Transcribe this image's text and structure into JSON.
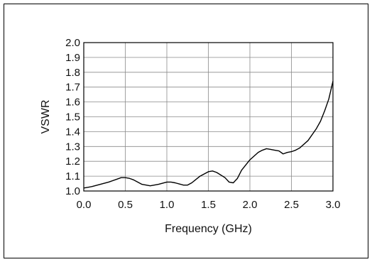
{
  "chart_data": {
    "type": "line",
    "title": "",
    "xlabel": "Frequency (GHz)",
    "ylabel": "VSWR",
    "xlim": [
      0.0,
      3.0
    ],
    "ylim": [
      1.0,
      2.0
    ],
    "grid": true,
    "x_ticks": [
      "0.0",
      "0.5",
      "1.0",
      "1.5",
      "2.0",
      "2.5",
      "3.0"
    ],
    "y_ticks": [
      "1.0",
      "1.1",
      "1.2",
      "1.3",
      "1.4",
      "1.5",
      "1.6",
      "1.7",
      "1.8",
      "1.9",
      "2.0"
    ],
    "series": [
      {
        "line_color": "#000000",
        "x": [
          0.0,
          0.1,
          0.2,
          0.3,
          0.4,
          0.45,
          0.5,
          0.55,
          0.6,
          0.7,
          0.8,
          0.9,
          1.0,
          1.05,
          1.1,
          1.2,
          1.25,
          1.3,
          1.4,
          1.5,
          1.55,
          1.6,
          1.7,
          1.75,
          1.8,
          1.85,
          1.9,
          2.0,
          2.1,
          2.15,
          2.2,
          2.25,
          2.3,
          2.35,
          2.4,
          2.45,
          2.5,
          2.55,
          2.6,
          2.7,
          2.8,
          2.85,
          2.9,
          2.95,
          3.0
        ],
        "y": [
          1.02,
          1.03,
          1.045,
          1.06,
          1.08,
          1.09,
          1.09,
          1.085,
          1.075,
          1.045,
          1.035,
          1.045,
          1.06,
          1.06,
          1.055,
          1.04,
          1.04,
          1.055,
          1.1,
          1.13,
          1.135,
          1.125,
          1.09,
          1.06,
          1.055,
          1.085,
          1.14,
          1.21,
          1.26,
          1.275,
          1.285,
          1.28,
          1.275,
          1.27,
          1.25,
          1.26,
          1.265,
          1.275,
          1.29,
          1.34,
          1.42,
          1.47,
          1.54,
          1.62,
          1.74
        ]
      }
    ]
  }
}
